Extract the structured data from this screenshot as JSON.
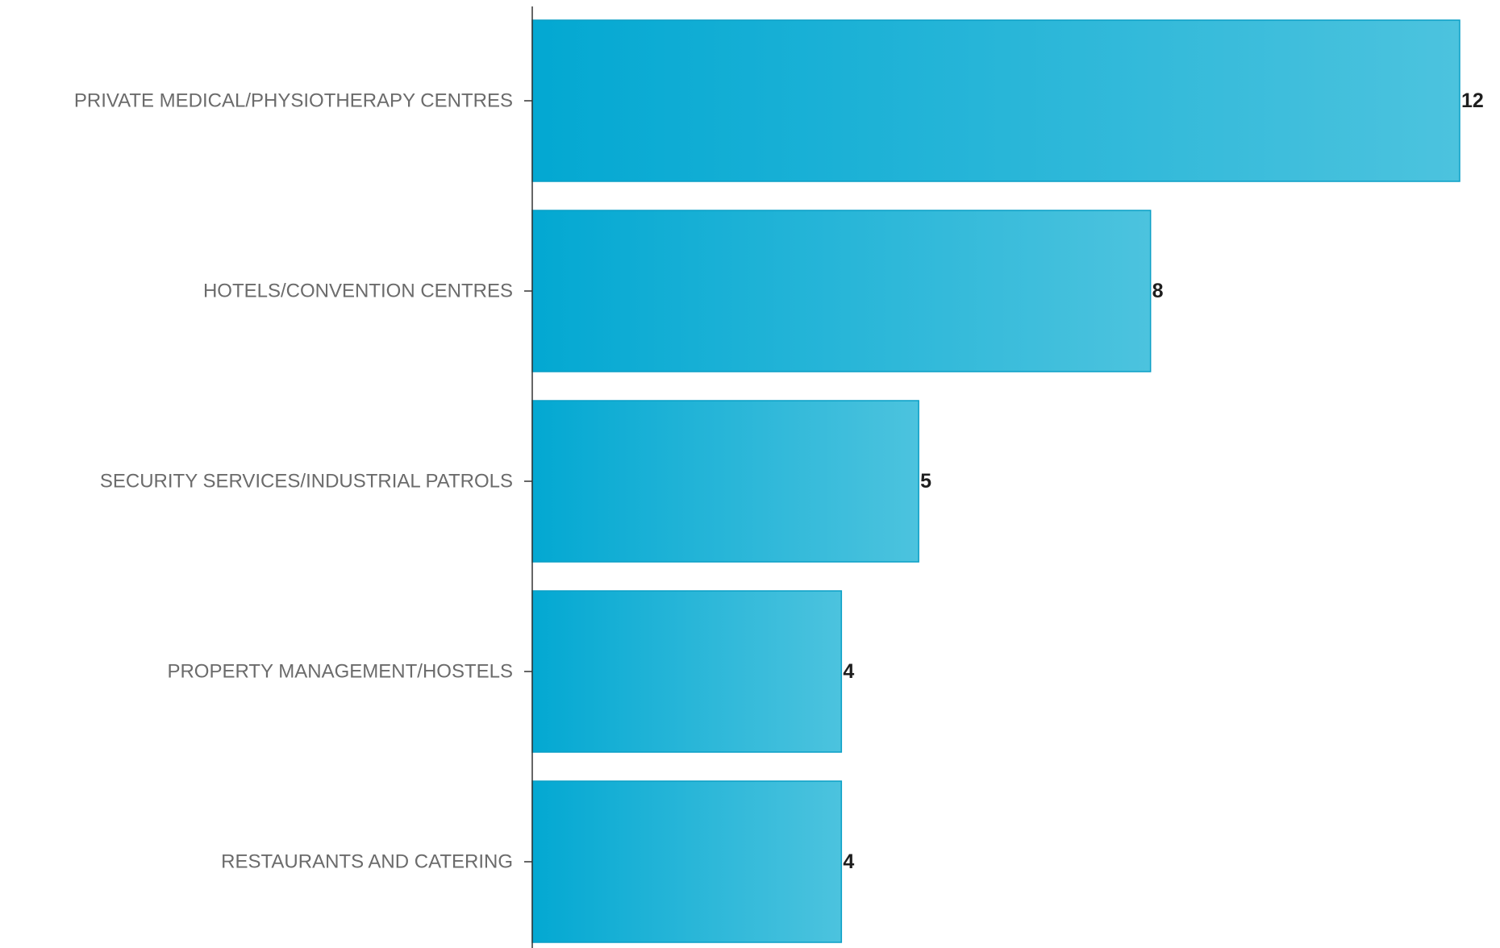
{
  "chart_data": {
    "type": "bar",
    "orientation": "horizontal",
    "categories": [
      "PRIVATE MEDICAL/PHYSIOTHERAPY CENTRES",
      "HOTELS/CONVENTION CENTRES",
      "SECURITY SERVICES/INDUSTRIAL PATROLS",
      "PROPERTY MANAGEMENT/HOSTELS",
      "RESTAURANTS AND CATERING"
    ],
    "values": [
      12,
      8,
      5,
      4,
      4
    ],
    "value_labels": [
      "12",
      "8",
      "5",
      "4",
      "4"
    ],
    "title": "",
    "xlabel": "",
    "ylabel": "",
    "xlim": [
      0,
      12
    ],
    "grid": false,
    "legend": "none",
    "colors": {
      "bar_start": "#03a8d2",
      "bar_end": "#4cc3de",
      "bar_stroke": "#0a9fc6",
      "axis": "#333333",
      "category_text": "#6b6b6b",
      "value_text": "#1e1e1e"
    }
  }
}
